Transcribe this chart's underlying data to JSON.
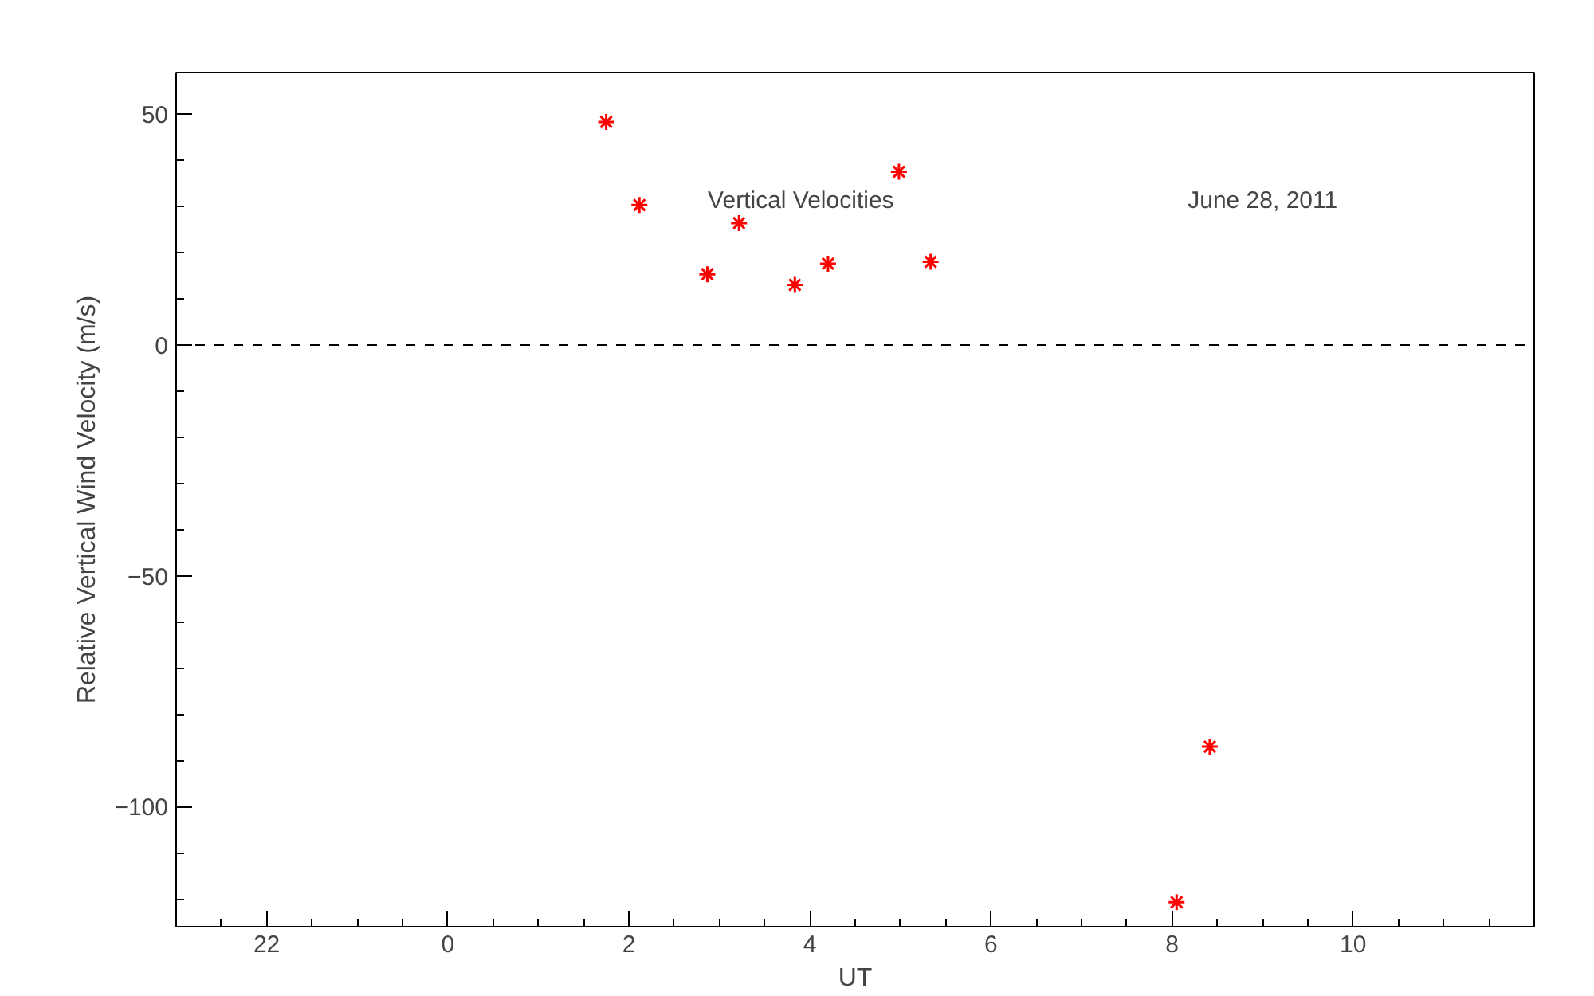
{
  "chart_data": {
    "type": "scatter",
    "xlabel": "UT",
    "ylabel": "Relative Vertical Wind Velocity (m/s)",
    "annotations": [
      "Vertical Velocities",
      "June 28, 2011"
    ],
    "x": [
      "2011-06-28T01:45",
      "2011-06-28T02:07",
      "2011-06-28T02:52",
      "2011-06-28T03:13",
      "2011-06-28T03:50",
      "2011-06-28T04:12",
      "2011-06-28T04:59",
      "2011-06-28T05:20",
      "2011-06-28T08:03",
      "2011-06-28T08:25"
    ],
    "series": [
      {
        "color": "#ff0000",
        "values": [
          48.3,
          30.3,
          15.3,
          26.4,
          13.0,
          17.6,
          37.5,
          18.0,
          -120.7,
          -87.0
        ]
      }
    ],
    "xlim": [
      "2011-06-27T21:00",
      "2011-06-28T12:00"
    ],
    "xticks": [
      {
        "value": "2011-06-27T22:00",
        "label": "22"
      },
      {
        "value": "2011-06-28T00:00",
        "label": "0"
      },
      {
        "value": "2011-06-28T02:00",
        "label": "2"
      },
      {
        "value": "2011-06-28T04:00",
        "label": "4"
      },
      {
        "value": "2011-06-28T06:00",
        "label": "6"
      },
      {
        "value": "2011-06-28T08:00",
        "label": "8"
      },
      {
        "value": "2011-06-28T10:00",
        "label": "10"
      }
    ],
    "ylim": [
      -126,
      59
    ],
    "yticks": [
      -100,
      -50,
      0,
      50
    ],
    "ref_lines": [
      {
        "axis": "y",
        "value": 0,
        "color": "#000000",
        "line_style": "dashed"
      }
    ],
    "marker": "cross",
    "grid": false
  }
}
